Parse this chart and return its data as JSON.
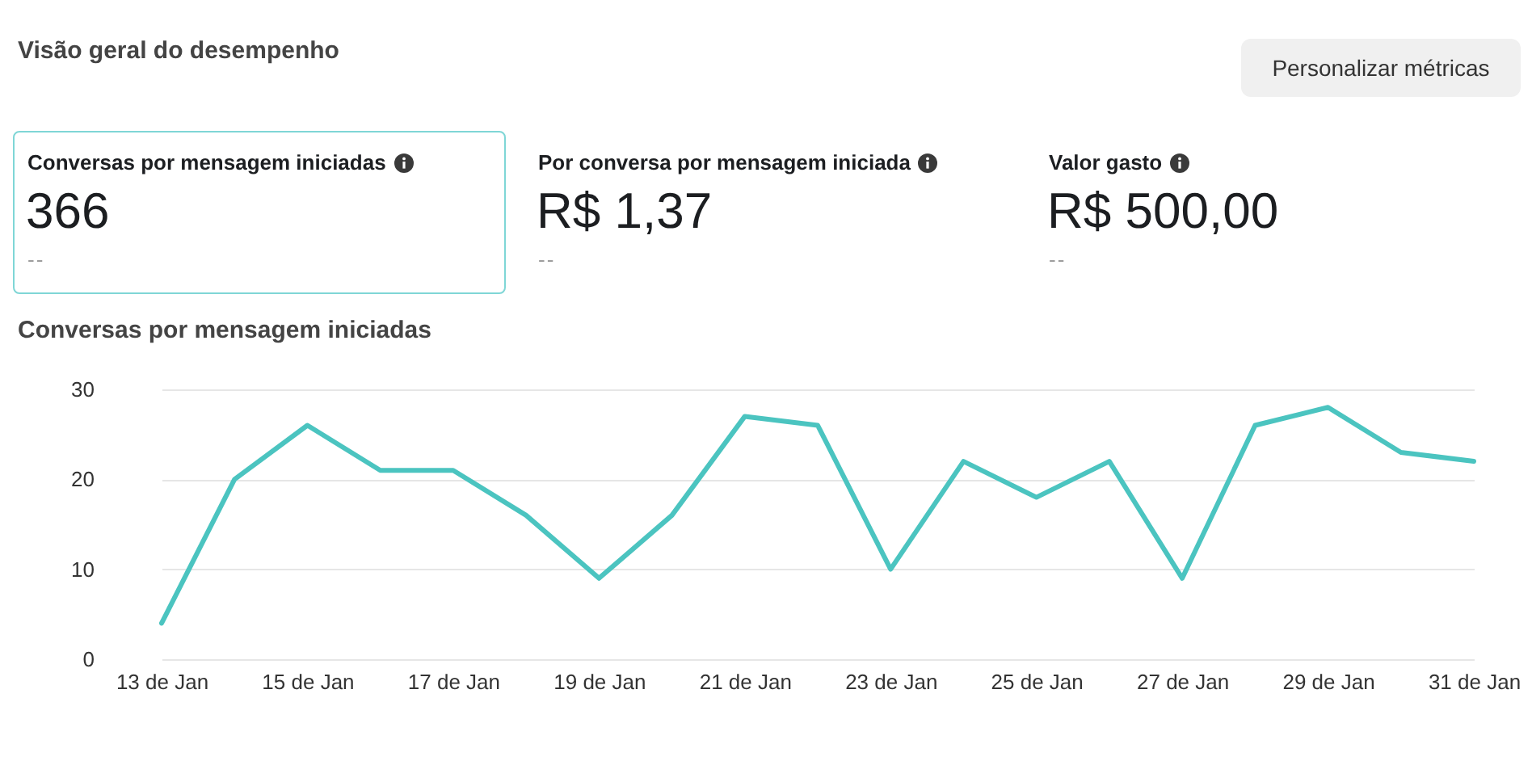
{
  "chart_data": [
    {
      "type": "other",
      "title": "Visão geral do desempenho",
      "annotations": [
        "Personalizar métricas",
        "Conversas por mensagem iniciadas",
        "366",
        "--",
        "Por conversa por mensagem iniciada",
        "R$ 1,37",
        "--",
        "Valor gasto",
        "R$ 500,00",
        "--"
      ]
    },
    {
      "type": "line",
      "title": "Conversas por mensagem iniciadas",
      "categories": [
        "13 de Jan",
        null,
        "15 de Jan",
        null,
        "17 de Jan",
        null,
        "19 de Jan",
        null,
        "21 de Jan",
        null,
        "23 de Jan",
        null,
        "25 de Jan",
        null,
        "27 de Jan",
        null,
        "29 de Jan",
        null,
        "31 de Jan"
      ],
      "values": [
        4,
        20,
        26,
        21,
        21,
        16,
        9,
        16,
        27,
        26,
        10,
        22,
        18,
        22,
        9,
        26,
        28,
        23,
        22
      ],
      "color": "#4bc4c0",
      "ylim": [
        0,
        30
      ],
      "yticks": [
        0,
        10,
        20,
        30
      ],
      "grid": "y"
    }
  ]
}
